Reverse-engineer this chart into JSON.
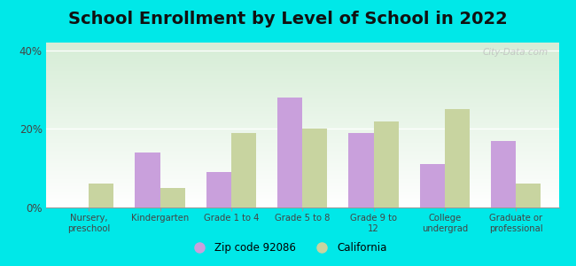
{
  "title": "School Enrollment by Level of School in 2022",
  "categories": [
    "Nursery,\npreschool",
    "Kindergarten",
    "Grade 1 to 4",
    "Grade 5 to 8",
    "Grade 9 to\n12",
    "College\nundergrad",
    "Graduate or\nprofessional"
  ],
  "zip_values": [
    0,
    14,
    9,
    28,
    19,
    11,
    17
  ],
  "ca_values": [
    6,
    5,
    19,
    20,
    22,
    25,
    6
  ],
  "zip_color": "#c9a0dc",
  "ca_color": "#c8d4a0",
  "zip_label": "Zip code 92086",
  "ca_label": "California",
  "ylim": [
    0,
    42
  ],
  "yticks": [
    0,
    20,
    40
  ],
  "ytick_labels": [
    "0%",
    "20%",
    "40%"
  ],
  "background_color": "#00e8e8",
  "plot_bg_top": "#d6edd6",
  "plot_bg_bottom": "#ffffff",
  "title_fontsize": 14,
  "bar_width": 0.35,
  "watermark": "City-Data.com"
}
